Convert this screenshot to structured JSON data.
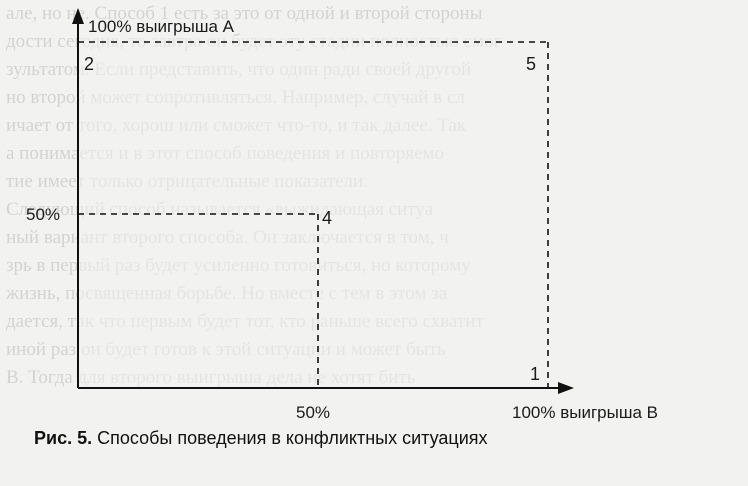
{
  "background_text": [
    "але, но не. Способ 1 есть за это от одной и второй стороны",
    "дости сегодня, то завтра он будет эту стадии полностью смог",
    "зультатом. Если представить, что один ради своей другой",
    "но второй может сопротивляться. Например, случай в сл",
    "ичает от того, хорош или сможет что-то, и так далее. Так",
    "а понимается и в этот способ поведения и повторяемо",
    "тие имеет только отрицательные показатели.",
    "Следующий способ называется «выжидающая ситуа",
    "ный вариант второго способа. Он заключается в том, ч",
    "зрь в первый раз будет усиленно готовиться, но которому",
    "жизнь, посвященная борьбе. Но вместе с тем в этом за",
    "дается, так что первым будет тот, кто раньше всего схватит",
    "иной раз он будет готов к этой ситуации и может быть",
    "В. Тогда для второго выигрыша дела не хотят бить"
  ],
  "diagram": {
    "y_axis_label": "100% выигрыша A",
    "x_axis_label": "100% выигрыша B",
    "y_mid_label": "50%",
    "x_mid_label": "50%",
    "points": [
      {
        "id": "1",
        "label": "1",
        "position": "bottom-right"
      },
      {
        "id": "2",
        "label": "2",
        "position": "top-left"
      },
      {
        "id": "4",
        "label": "4",
        "position": "center"
      },
      {
        "id": "5",
        "label": "5",
        "position": "top-right"
      }
    ]
  },
  "caption": {
    "prefix": "Рис. 5.",
    "text": "Способы поведения в конфликтных ситуациях"
  }
}
